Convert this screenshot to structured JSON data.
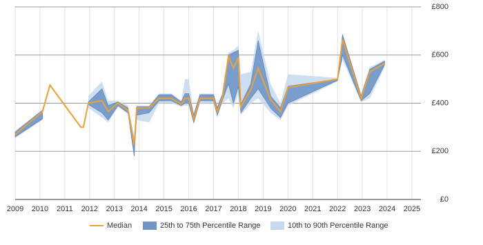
{
  "chart_data": {
    "type": "range-line",
    "x": [
      2009.0,
      2010.1,
      2010.4,
      2011.65,
      2011.75,
      2011.95,
      2012.5,
      2012.75,
      2013.15,
      2013.55,
      2013.8,
      2013.9,
      2014.4,
      2014.8,
      2015.3,
      2015.7,
      2015.85,
      2016.0,
      2016.2,
      2016.45,
      2017.0,
      2017.15,
      2017.35,
      2017.6,
      2017.8,
      2018.0,
      2018.1,
      2018.5,
      2018.8,
      2019.3,
      2019.7,
      2020.0,
      2022.0,
      2022.2,
      2022.95,
      2023.3,
      2023.9
    ],
    "series": [
      {
        "name": "Median",
        "color": "#f0a030",
        "values": [
          270,
          365,
          475,
          300,
          300,
          400,
          410,
          365,
          400,
          370,
          225,
          380,
          380,
          420,
          420,
          395,
          420,
          420,
          335,
          420,
          420,
          365,
          420,
          595,
          545,
          590,
          385,
          455,
          545,
          415,
          365,
          465,
          500,
          665,
          420,
          530,
          565
        ]
      },
      {
        "name": "25th to 75th Percentile Range",
        "color": "#7096c8",
        "low": [
          260,
          335,
          null,
          null,
          null,
          395,
          360,
          330,
          390,
          360,
          180,
          350,
          360,
          410,
          410,
          390,
          400,
          400,
          320,
          410,
          410,
          350,
          410,
          480,
          400,
          470,
          360,
          420,
          460,
          380,
          340,
          400,
          495,
          600,
          410,
          440,
          560
        ],
        "high": [
          280,
          370,
          null,
          null,
          null,
          405,
          460,
          390,
          405,
          380,
          240,
          385,
          385,
          435,
          435,
          405,
          440,
          440,
          350,
          435,
          435,
          380,
          435,
          600,
          610,
          620,
          395,
          480,
          660,
          430,
          380,
          470,
          500,
          685,
          430,
          540,
          575
        ]
      },
      {
        "name": "10th to 90th Percentile Range",
        "color": "#c6d9ef",
        "low": [
          255,
          330,
          null,
          null,
          null,
          380,
          340,
          320,
          385,
          355,
          175,
          330,
          320,
          400,
          400,
          385,
          390,
          390,
          310,
          400,
          400,
          340,
          400,
          420,
          380,
          440,
          350,
          400,
          420,
          360,
          330,
          390,
          490,
          580,
          405,
          420,
          550
        ],
        "high": [
          285,
          375,
          null,
          null,
          null,
          430,
          490,
          410,
          410,
          390,
          260,
          390,
          390,
          440,
          440,
          410,
          500,
          500,
          360,
          440,
          440,
          390,
          440,
          610,
          620,
          640,
          520,
          530,
          700,
          480,
          400,
          520,
          505,
          690,
          440,
          550,
          580
        ]
      }
    ],
    "xlim": [
      2009,
      2025
    ],
    "xticks": [
      2009,
      2010,
      2011,
      2012,
      2013,
      2014,
      2015,
      2016,
      2017,
      2018,
      2019,
      2020,
      2021,
      2022,
      2023,
      2024,
      2025
    ],
    "ylim": [
      0,
      800
    ],
    "yticks": [
      {
        "value": 0,
        "label": "£0"
      },
      {
        "value": 200,
        "label": "£200"
      },
      {
        "value": 400,
        "label": "£400"
      },
      {
        "value": 600,
        "label": "£600"
      },
      {
        "value": 800,
        "label": "£800"
      }
    ],
    "grid": true
  }
}
